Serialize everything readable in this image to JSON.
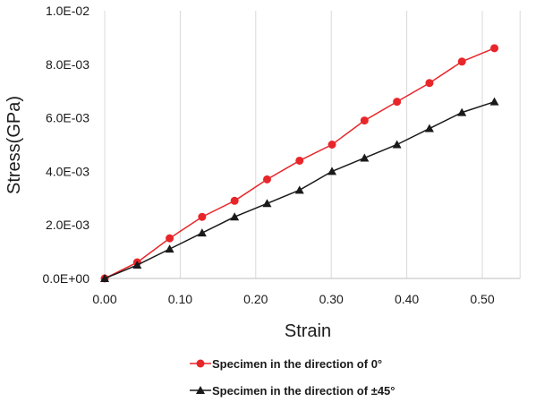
{
  "chart_data": {
    "type": "line",
    "xlabel": "Strain",
    "ylabel": "Stress(GPa)",
    "xlim": [
      0,
      0.55
    ],
    "ylim": [
      0,
      0.01
    ],
    "x_ticks": [
      0.0,
      0.1,
      0.2,
      0.3,
      0.4,
      0.5
    ],
    "x_tick_labels": [
      "0.00",
      "0.10",
      "0.20",
      "0.30",
      "0.40",
      "0.50"
    ],
    "y_ticks": [
      0,
      0.002,
      0.004,
      0.006,
      0.008,
      0.01
    ],
    "y_tick_labels": [
      "0.0E+00",
      "2.0E-03",
      "4.0E-03",
      "6.0E-03",
      "8.0E-03",
      "1.0E-02"
    ],
    "grid": "vertical",
    "legend_position": "bottom",
    "series": [
      {
        "name": "Specimen in the direction of 0°",
        "color": "#e8262a",
        "marker": "circle",
        "x": [
          0.0,
          0.043,
          0.086,
          0.129,
          0.172,
          0.215,
          0.258,
          0.301,
          0.344,
          0.387,
          0.43,
          0.473,
          0.516
        ],
        "y": [
          0.0,
          0.0006,
          0.0015,
          0.0023,
          0.0029,
          0.0037,
          0.0044,
          0.005,
          0.0059,
          0.0066,
          0.0073,
          0.0081,
          0.0086
        ]
      },
      {
        "name": "Specimen in the direction of ±45°",
        "color": "#1a1a1a",
        "marker": "triangle",
        "x": [
          0.0,
          0.043,
          0.086,
          0.129,
          0.172,
          0.215,
          0.258,
          0.301,
          0.344,
          0.387,
          0.43,
          0.473,
          0.516
        ],
        "y": [
          0.0,
          0.0005,
          0.0011,
          0.0017,
          0.0023,
          0.0028,
          0.0033,
          0.004,
          0.0045,
          0.005,
          0.0056,
          0.0062,
          0.0066
        ]
      }
    ]
  }
}
